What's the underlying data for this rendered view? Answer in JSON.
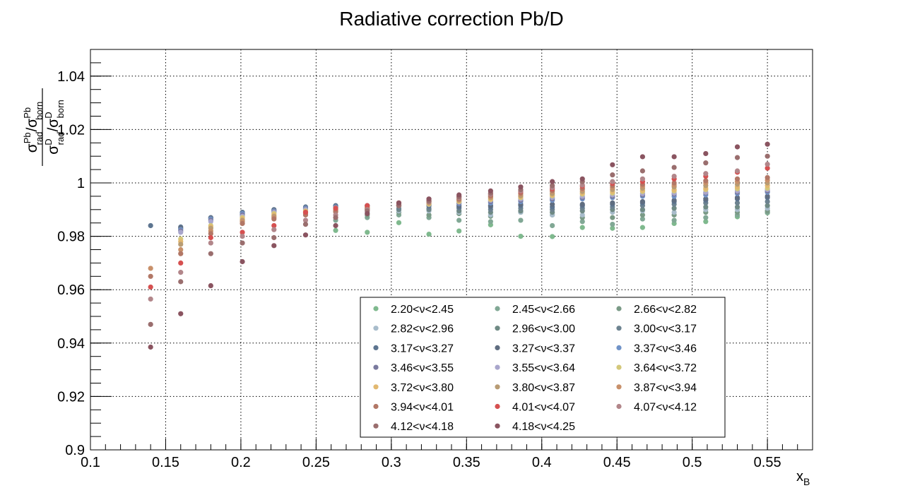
{
  "chart_data": {
    "type": "scatter",
    "title": "Radiative correction Pb/D",
    "xlabel": "x",
    "xlabel_sub": "B",
    "ylabel": {
      "numerator": {
        "s1": "σ",
        "s1_sup": "Pb",
        "s1_sub": "rad",
        "slash": "/",
        "s2": "σ",
        "s2_sup": "Pb",
        "s2_sub": "born"
      },
      "denominator": {
        "s1": "σ",
        "s1_sup": "D",
        "s1_sub": "rad",
        "slash": "/",
        "s2": "σ",
        "s2_sup": "D",
        "s2_sub": "born"
      }
    },
    "xlim": [
      0.1,
      0.58
    ],
    "ylim": [
      0.9,
      1.05
    ],
    "xticks": [
      "0.1",
      "0.15",
      "0.2",
      "0.25",
      "0.3",
      "0.35",
      "0.4",
      "0.45",
      "0.5",
      "0.55"
    ],
    "yticks": [
      "0.9",
      "0.92",
      "0.94",
      "0.96",
      "0.98",
      "1",
      "1.02",
      "1.04"
    ],
    "grid": true,
    "legend": "bottom-center",
    "x": [
      0.14,
      0.16,
      0.18,
      0.201,
      0.222,
      0.243,
      0.263,
      0.284,
      0.305,
      0.325,
      0.345,
      0.366,
      0.386,
      0.407,
      0.427,
      0.447,
      0.467,
      0.488,
      0.509,
      0.53,
      0.55
    ],
    "series": [
      {
        "name": "2.20<ν<2.45",
        "color": "#7fb98e",
        "values": [
          null,
          null,
          null,
          null,
          null,
          null,
          0.9822,
          0.9815,
          0.9851,
          0.9808,
          0.982,
          0.9843,
          0.98,
          0.9799,
          0.9833,
          0.983,
          0.9833,
          0.9848,
          0.9855,
          0.9873,
          0.9888
        ]
      },
      {
        "name": "2.45<ν<2.66",
        "color": "#81a895",
        "values": [
          null,
          null,
          null,
          null,
          null,
          null,
          0.986,
          0.987,
          0.988,
          0.987,
          0.986,
          0.9855,
          0.986,
          0.984,
          0.9855,
          0.9845,
          0.9865,
          0.986,
          0.987,
          0.988,
          0.989
        ]
      },
      {
        "name": "2.66<ν<2.82",
        "color": "#7a9a86",
        "values": [
          null,
          null,
          null,
          null,
          null,
          null,
          null,
          0.988,
          0.989,
          0.988,
          0.9885,
          0.9875,
          0.989,
          0.988,
          0.987,
          0.987,
          0.988,
          0.988,
          0.989,
          0.989,
          0.9895
        ]
      },
      {
        "name": "2.82<ν<2.96",
        "color": "#a8bccb",
        "values": [
          null,
          null,
          null,
          null,
          null,
          null,
          null,
          0.989,
          0.9895,
          0.9895,
          0.989,
          0.988,
          0.989,
          0.988,
          0.988,
          0.989,
          0.9895,
          0.989,
          0.99,
          0.99,
          0.9905
        ]
      },
      {
        "name": "2.96<ν<3.00",
        "color": "#6f8a84",
        "values": [
          null,
          null,
          null,
          null,
          null,
          null,
          null,
          0.99,
          0.99,
          0.99,
          0.9895,
          0.989,
          0.9895,
          0.989,
          0.9895,
          0.99,
          0.99,
          0.9905,
          0.991,
          0.991,
          0.9915
        ]
      },
      {
        "name": "3.00<ν<3.17",
        "color": "#6d8390",
        "values": [
          null,
          null,
          null,
          null,
          null,
          null,
          0.99,
          0.9905,
          0.9905,
          0.9905,
          0.9905,
          0.99,
          0.9905,
          0.99,
          0.9905,
          0.991,
          0.9915,
          0.992,
          0.9925,
          0.9925,
          0.993
        ]
      },
      {
        "name": "3.17<ν<3.27",
        "color": "#5d7590",
        "values": [
          0.984,
          0.9835,
          0.987,
          0.989,
          0.99,
          0.991,
          0.9915,
          0.9915,
          0.9915,
          0.9915,
          0.991,
          0.991,
          0.9915,
          0.991,
          0.9915,
          0.992,
          0.9925,
          0.993,
          0.9935,
          0.994,
          0.9945
        ]
      },
      {
        "name": "3.27<ν<3.37",
        "color": "#5f6d80",
        "values": [
          null,
          0.983,
          0.9868,
          0.9885,
          0.9898,
          0.9905,
          0.9912,
          0.9912,
          0.9915,
          0.9915,
          0.9915,
          0.9915,
          0.992,
          0.992,
          0.992,
          0.9925,
          0.993,
          0.9935,
          0.994,
          0.9945,
          0.995
        ]
      },
      {
        "name": "3.37<ν<3.46",
        "color": "#7093c8",
        "values": [
          null,
          0.9825,
          0.9865,
          0.9885,
          0.9895,
          0.9905,
          0.991,
          0.9912,
          0.9915,
          0.9918,
          0.9922,
          0.9925,
          0.993,
          0.9935,
          0.994,
          0.9945,
          0.995,
          0.995,
          0.9955,
          0.996,
          0.9965
        ]
      },
      {
        "name": "3.46<ν<3.55",
        "color": "#7a7a9e",
        "values": [
          null,
          0.982,
          0.986,
          0.988,
          0.9892,
          0.9902,
          0.9908,
          0.9912,
          0.9915,
          0.992,
          0.9925,
          0.993,
          0.9935,
          0.994,
          0.9945,
          0.995,
          0.9955,
          0.9958,
          0.9962,
          0.9965,
          0.997
        ]
      },
      {
        "name": "3.55<ν<3.64",
        "color": "#a9a6cc",
        "values": [
          null,
          0.9815,
          0.9855,
          0.9875,
          0.989,
          0.99,
          0.9906,
          0.991,
          0.9915,
          0.9922,
          0.9928,
          0.9935,
          0.994,
          0.9945,
          0.995,
          0.9955,
          0.996,
          0.9962,
          0.9965,
          0.997,
          0.9975
        ]
      },
      {
        "name": "3.64<ν<3.72",
        "color": "#d4c87a",
        "values": [
          null,
          0.979,
          0.984,
          0.987,
          0.9885,
          0.9895,
          0.9905,
          0.991,
          0.9915,
          0.992,
          0.993,
          0.9938,
          0.9945,
          0.9952,
          0.9958,
          0.9962,
          0.9968,
          0.997,
          0.9975,
          0.9978,
          0.998
        ]
      },
      {
        "name": "3.72<ν<3.80",
        "color": "#e2b870",
        "values": [
          null,
          0.978,
          0.9835,
          0.9865,
          0.988,
          0.9892,
          0.99,
          0.9908,
          0.9915,
          0.9922,
          0.9932,
          0.994,
          0.9948,
          0.9955,
          0.9962,
          0.9968,
          0.9972,
          0.9975,
          0.998,
          0.9985,
          0.999
        ]
      },
      {
        "name": "3.80<ν<3.87",
        "color": "#b89c74",
        "values": [
          null,
          0.977,
          0.983,
          0.986,
          0.9875,
          0.9888,
          0.9898,
          0.9906,
          0.9915,
          0.9925,
          0.9935,
          0.9945,
          0.9952,
          0.996,
          0.9968,
          0.9975,
          0.998,
          0.9985,
          0.999,
          0.9995,
          1.0
        ]
      },
      {
        "name": "3.87<ν<3.94",
        "color": "#c8906a",
        "values": [
          0.968,
          0.975,
          0.982,
          0.9855,
          0.987,
          0.9885,
          0.9895,
          0.9905,
          0.9918,
          0.9928,
          0.9938,
          0.9948,
          0.9958,
          0.9968,
          0.9975,
          0.9982,
          0.9988,
          0.9992,
          1.0,
          1.0005,
          1.001
        ]
      },
      {
        "name": "3.94<ν<4.01",
        "color": "#b27766",
        "values": [
          0.965,
          0.9735,
          0.981,
          0.9848,
          0.9865,
          0.988,
          0.9892,
          0.9902,
          0.992,
          0.993,
          0.994,
          0.9952,
          0.9962,
          0.9972,
          0.998,
          0.999,
          0.9995,
          1.0,
          1.0008,
          1.0015,
          1.002
        ]
      },
      {
        "name": "4.01<ν<4.07",
        "color": "#d65050",
        "values": [
          0.961,
          0.97,
          0.9795,
          0.9815,
          0.984,
          0.989,
          0.9905,
          0.9915,
          0.9925,
          0.9935,
          0.9948,
          0.9958,
          0.9968,
          0.9978,
          0.9988,
          0.9998,
          1.0005,
          1.0015,
          1.0025,
          1.004,
          1.0055
        ]
      },
      {
        "name": "4.07<ν<4.12",
        "color": "#b2868a",
        "values": [
          0.9565,
          0.9665,
          0.9775,
          0.98,
          0.9825,
          0.986,
          0.988,
          0.99,
          0.9915,
          0.993,
          0.9945,
          0.9958,
          0.997,
          0.9982,
          0.9992,
          1.0005,
          1.0015,
          1.0025,
          1.0035,
          1.0045,
          1.007
        ]
      },
      {
        "name": "4.12<ν<4.18",
        "color": "#9a6e6e",
        "values": [
          0.947,
          0.963,
          0.9735,
          0.9775,
          0.9795,
          0.9845,
          0.987,
          0.9895,
          0.9915,
          0.9932,
          0.9948,
          0.9962,
          0.9975,
          0.999,
          1.0005,
          1.003,
          1.0045,
          1.0058,
          1.0075,
          1.0095,
          1.01
        ]
      },
      {
        "name": "4.18<ν<4.25",
        "color": "#8a5460",
        "values": [
          0.9385,
          0.951,
          0.9615,
          0.9705,
          0.9765,
          0.9805,
          0.984,
          0.9885,
          0.9925,
          0.994,
          0.9955,
          0.997,
          0.9985,
          1.0005,
          1.0015,
          1.0068,
          1.0098,
          1.0098,
          1.011,
          1.0135,
          1.0145
        ]
      }
    ]
  }
}
